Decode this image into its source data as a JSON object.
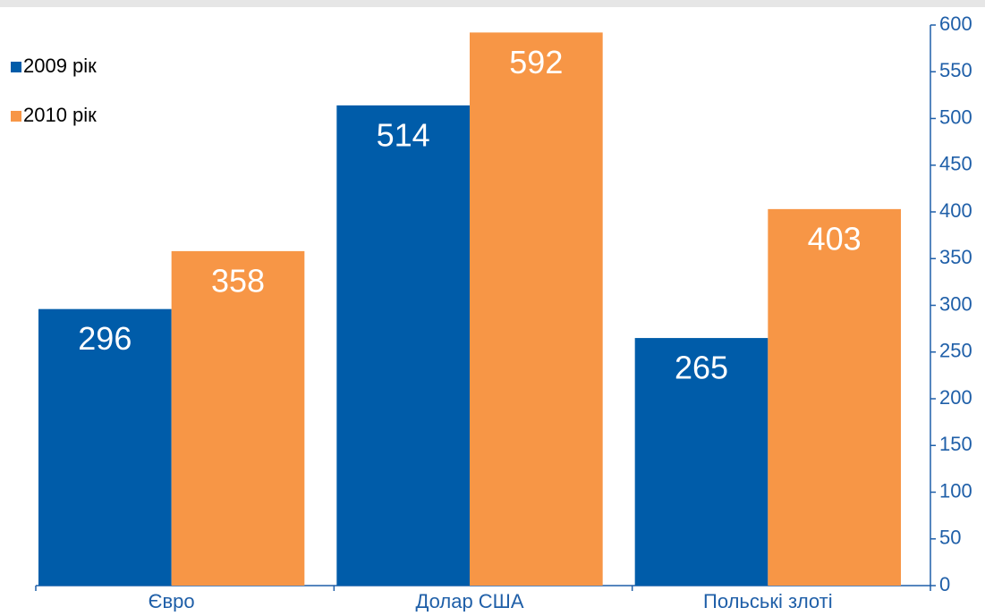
{
  "chart_data": {
    "type": "bar",
    "categories": [
      "Євро",
      "Долар США",
      "Польські злоті"
    ],
    "series": [
      {
        "name": "2009 рік",
        "color": "#005ca9",
        "values": [
          296,
          514,
          265
        ]
      },
      {
        "name": "2010 рік",
        "color": "#f79646",
        "values": [
          358,
          592,
          403
        ]
      }
    ],
    "ylim": [
      0,
      600
    ],
    "yticks": [
      0,
      50,
      100,
      150,
      200,
      250,
      300,
      350,
      400,
      450,
      500,
      550,
      600
    ],
    "y_axis_side": "right",
    "legend": "top-left",
    "grid": false
  }
}
